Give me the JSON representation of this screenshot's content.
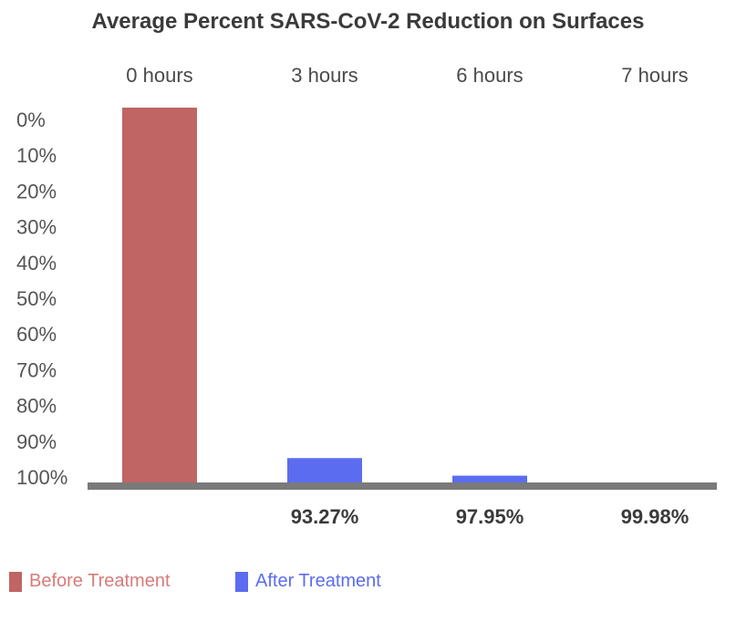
{
  "chart_data": {
    "type": "bar",
    "title": "Average Percent SARS-CoV-2 Reduction on Surfaces",
    "categories": [
      "0 hours",
      "3 hours",
      "6 hours",
      "7 hours"
    ],
    "y_tick_labels": [
      "0%",
      "10%",
      "20%",
      "30%",
      "40%",
      "50%",
      "60%",
      "70%",
      "80%",
      "90%",
      "100%"
    ],
    "ylim": [
      0,
      100
    ],
    "y_axis_inverted": true,
    "series": [
      {
        "name": "Before Treatment",
        "color": "#c06464",
        "values": [
          0,
          null,
          null,
          null
        ]
      },
      {
        "name": "After Treatment",
        "color": "#5b6cf0",
        "values": [
          null,
          93.27,
          97.95,
          99.98
        ]
      }
    ],
    "data_labels": [
      "",
      "93.27%",
      "97.95%",
      "99.98%"
    ],
    "axis_color": "#7a7a7a",
    "legend": {
      "position": "bottom-left"
    }
  }
}
